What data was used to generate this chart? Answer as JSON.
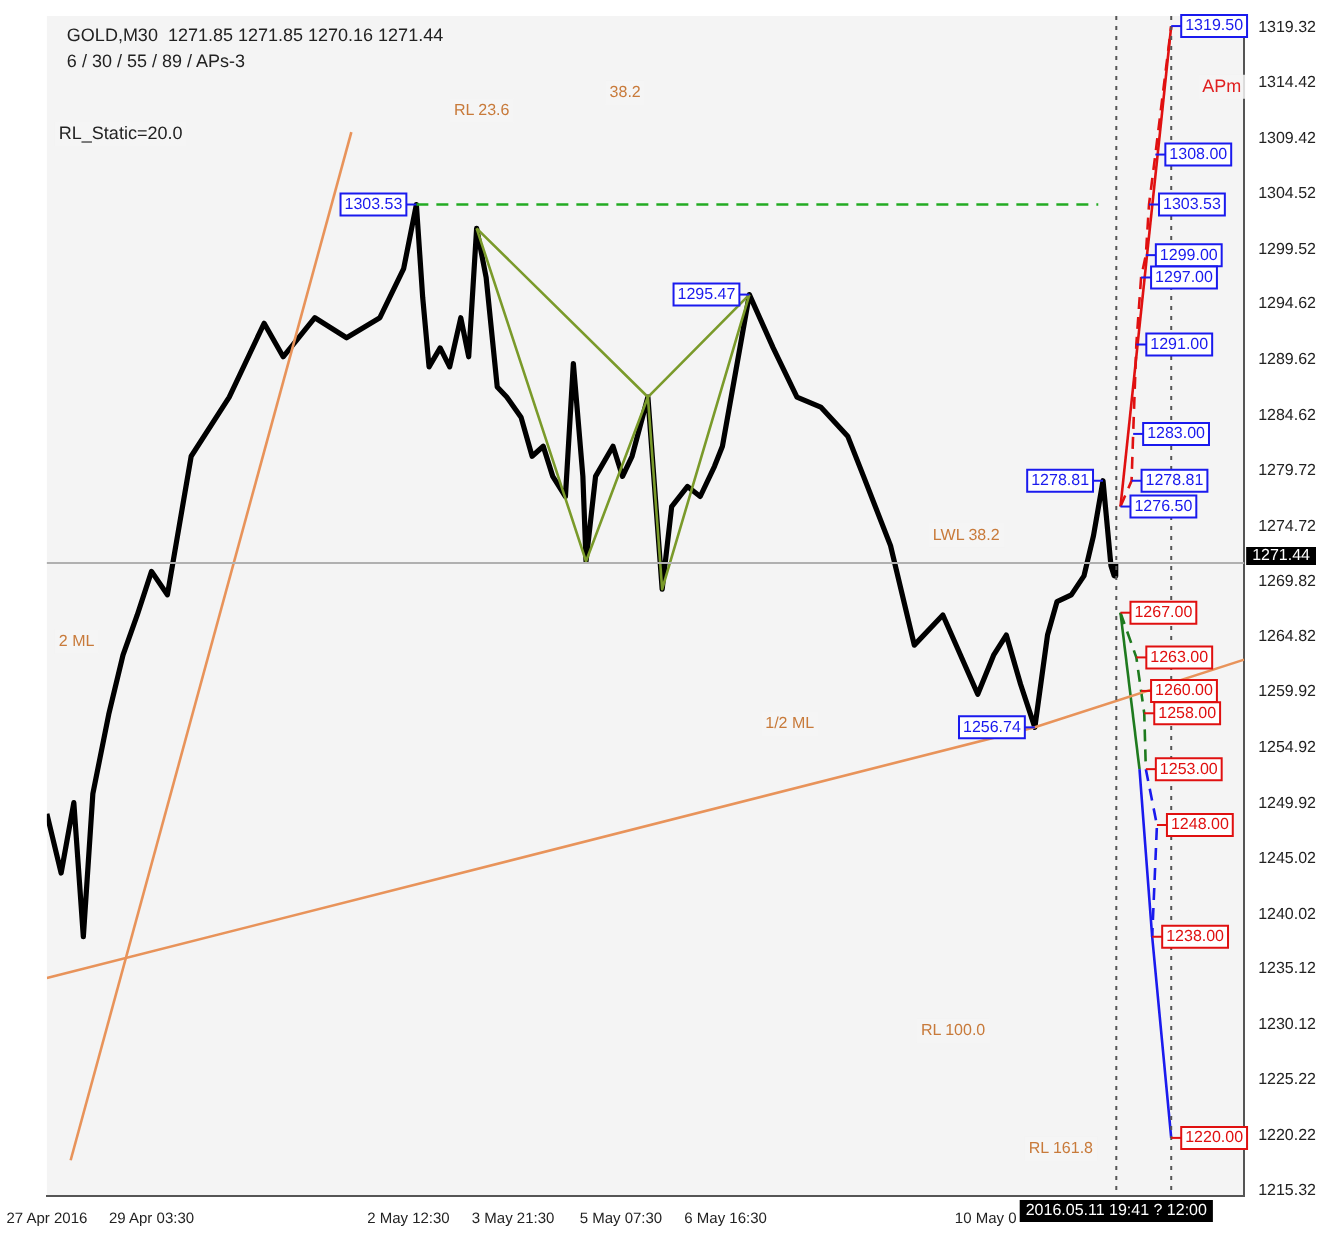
{
  "chart_data": {
    "type": "line",
    "title": "GOLD,M30  1271.85 1271.85 1270.16 1271.44",
    "subtitle": "6 / 30 / 55 / 89 / APs-3",
    "xlim": [
      "2016-04-27T18:30",
      "2016-05-13T12:00"
    ],
    "ylim": [
      1214.8,
      1320.4
    ],
    "xticks": [
      {
        "value": "2016-04-27T18:30",
        "label": "27 Apr 2016"
      },
      {
        "value": "2016-04-29T03:30",
        "label": "29 Apr 03:30"
      },
      {
        "value": "2016-05-02T12:30",
        "label": "2 May 12:30"
      },
      {
        "value": "2016-05-03T21:30",
        "label": "3 May 21:30"
      },
      {
        "value": "2016-05-05T07:30",
        "label": "5 May 07:30"
      },
      {
        "value": "2016-05-06T16:30",
        "label": "6 May 16:30"
      },
      {
        "value": "2016-05-10T02:30",
        "label": "10 May 0"
      }
    ],
    "yticks": [
      1215.32,
      1220.22,
      1225.22,
      1230.12,
      1235.12,
      1240.02,
      1245.02,
      1249.92,
      1254.92,
      1259.92,
      1264.82,
      1269.82,
      1274.72,
      1279.72,
      1284.62,
      1289.62,
      1294.62,
      1299.52,
      1304.52,
      1309.42,
      1314.42,
      1319.32
    ],
    "grid": false,
    "legend": false,
    "series": [
      {
        "color": "#e8935a",
        "x": [
          "2016-04-28T02:00",
          "2016-05-01T18:30"
        ],
        "values": [
          1218.0,
          1310.0
        ]
      },
      {
        "color": "#e8935a",
        "x": [
          "2016-04-27T18:30",
          "2016-05-10T18:00",
          "2016-05-13T12:00"
        ],
        "values": [
          1234.3,
          1256.74,
          1262.8
        ]
      },
      {
        "color": "#22aa22",
        "line_style": "dashed",
        "x": [
          "2016-05-02T15:00",
          "2016-05-11T14:00"
        ],
        "values": [
          1303.53,
          1303.53
        ]
      },
      {
        "color": "#7a9a2a",
        "x": [
          "2016-05-03T10:00",
          "2016-05-04T20:30",
          "2016-05-05T16:00",
          "2016-05-05T20:30",
          "2016-05-07T00:00"
        ],
        "values": [
          1301.4,
          1271.6,
          1286.3,
          1269.1,
          1295.47
        ]
      },
      {
        "color": "#7a9a2a",
        "x": [
          "2016-05-03T10:00",
          "2016-05-05T16:00",
          "2016-05-07T00:00"
        ],
        "values": [
          1301.4,
          1286.3,
          1295.47
        ]
      },
      {
        "color": "#000000",
        "x": [
          "2016-04-27T18:30",
          "2016-04-27T23:00",
          "2016-04-28T03:00",
          "2016-04-28T06:00",
          "2016-04-28T09:00",
          "2016-04-28T14:00",
          "2016-04-28T18:30",
          "2016-04-28T23:00",
          "2016-04-29T03:30",
          "2016-04-29T08:30",
          "2016-04-29T16:00",
          "2016-04-30T04:00",
          "2016-04-30T15:00",
          "2016-04-30T21:00",
          "2016-05-01T07:00",
          "2016-05-01T17:00",
          "2016-05-02T03:30",
          "2016-05-02T11:00",
          "2016-05-02T15:00",
          "2016-05-02T17:00",
          "2016-05-02T19:00",
          "2016-05-02T22:30",
          "2016-05-03T01:30",
          "2016-05-03T05:00",
          "2016-05-03T07:30",
          "2016-05-03T10:00",
          "2016-05-03T13:00",
          "2016-05-03T16:30",
          "2016-05-03T19:30",
          "2016-05-04T00:00",
          "2016-05-04T03:30",
          "2016-05-04T07:00",
          "2016-05-04T10:00",
          "2016-05-04T14:00",
          "2016-05-04T16:30",
          "2016-05-04T19:30",
          "2016-05-04T20:30",
          "2016-05-04T23:30",
          "2016-05-05T05:00",
          "2016-05-05T08:00",
          "2016-05-05T11:00",
          "2016-05-05T16:00",
          "2016-05-05T20:30",
          "2016-05-05T23:30",
          "2016-05-06T04:30",
          "2016-05-06T08:30",
          "2016-05-06T13:00",
          "2016-05-06T15:30",
          "2016-05-07T00:00",
          "2016-05-07T07:30",
          "2016-05-07T15:00",
          "2016-05-07T22:30",
          "2016-05-08T07:00",
          "2016-05-08T12:00",
          "2016-05-08T20:30",
          "2016-05-09T04:00",
          "2016-05-09T13:00",
          "2016-05-10T00:00",
          "2016-05-10T05:00",
          "2016-05-10T09:00",
          "2016-05-10T13:30",
          "2016-05-10T18:00",
          "2016-05-10T22:00",
          "2016-05-11T01:00",
          "2016-05-11T05:30",
          "2016-05-11T09:30",
          "2016-05-11T12:30",
          "2016-05-11T15:30",
          "2016-05-11T18:00",
          "2016-05-11T19:00",
          "2016-05-11T19:30"
        ],
        "values": [
          1249.0,
          1243.7,
          1250.0,
          1238.0,
          1250.8,
          1257.9,
          1263.2,
          1266.8,
          1270.7,
          1268.6,
          1281.0,
          1286.3,
          1292.9,
          1289.9,
          1293.4,
          1291.6,
          1293.4,
          1297.8,
          1303.53,
          1295.2,
          1289.0,
          1290.7,
          1289.0,
          1293.4,
          1289.9,
          1301.4,
          1297.0,
          1287.2,
          1286.3,
          1284.5,
          1281.0,
          1281.9,
          1279.2,
          1277.4,
          1289.3,
          1279.2,
          1271.6,
          1279.2,
          1281.9,
          1279.2,
          1281.0,
          1286.3,
          1269.1,
          1276.5,
          1278.3,
          1277.4,
          1280.1,
          1281.9,
          1295.47,
          1290.7,
          1286.3,
          1285.4,
          1282.8,
          1279.2,
          1273.0,
          1264.1,
          1266.8,
          1259.7,
          1263.2,
          1265.0,
          1260.6,
          1256.74,
          1265.0,
          1268.0,
          1268.6,
          1270.3,
          1273.9,
          1278.81,
          1271.2,
          1270.3,
          1271.44
        ]
      },
      {
        "color": "#e01010",
        "x": [
          "2016-05-11T21:00",
          "2016-05-12T13:00"
        ],
        "values": [
          1276.5,
          1319.5
        ]
      },
      {
        "color": "#1e7a1e",
        "x": [
          "2016-05-11T21:00",
          "2016-05-12T03:00"
        ],
        "values": [
          1267.0,
          1253.0
        ]
      },
      {
        "color": "#1a1aee",
        "x": [
          "2016-05-12T03:00",
          "2016-05-12T07:00",
          "2016-05-12T13:00"
        ],
        "values": [
          1253.0,
          1238.0,
          1220.0
        ]
      },
      {
        "color": "#1a1aee",
        "line_style": "dashed",
        "x": [
          "2016-05-12T05:00",
          "2016-05-12T08:30",
          "2016-05-12T07:00"
        ],
        "values": [
          1253.0,
          1248.0,
          1238.0
        ]
      },
      {
        "color": "#e01010",
        "line_style": "dashed",
        "x": [
          "2016-05-11T21:00",
          "2016-05-12T00:30",
          "2016-05-12T01:00",
          "2016-05-12T02:00",
          "2016-05-12T03:30",
          "2016-05-12T05:00",
          "2016-05-12T06:00",
          "2016-05-12T08:00",
          "2016-05-12T13:00"
        ],
        "values": [
          1276.5,
          1278.81,
          1283.0,
          1291.0,
          1297.0,
          1299.0,
          1303.53,
          1308.0,
          1319.5
        ]
      },
      {
        "color": "#1e7a1e",
        "line_style": "dashed",
        "x": [
          "2016-05-11T21:00",
          "2016-05-12T02:00",
          "2016-05-12T03:30",
          "2016-05-12T04:30",
          "2016-05-12T05:00"
        ],
        "values": [
          1267.0,
          1263.0,
          1260.0,
          1258.0,
          1253.0
        ]
      }
    ],
    "ref_lines": [
      {
        "axis": "y",
        "value": 1271.44,
        "label": "1271.44",
        "color": "#b0b0b0"
      },
      {
        "axis": "x",
        "value": "2016-05-11T19:41",
        "label": "2016.05.11 19:41 ? 12:00",
        "color": "#555555",
        "line_style": "dotted"
      },
      {
        "axis": "x",
        "value": "2016-05-12T13:00",
        "color": "#555555",
        "line_style": "dotted"
      }
    ],
    "annotations": [
      "RL_Static=20.0",
      "APm",
      "2 ML",
      "1/2 ML",
      "LWL 38.2",
      "RL 23.6",
      "38.2",
      "RL 100.0",
      "RL 161.8",
      {
        "text": "1303.53",
        "x": "2016-05-02T15:00",
        "y": 1303.53
      },
      {
        "text": "1295.47",
        "x": "2016-05-07T00:00",
        "y": 1295.47
      },
      {
        "text": "1278.81",
        "x": "2016-05-11T15:30",
        "y": 1278.81
      },
      {
        "text": "1256.74",
        "x": "2016-05-10T18:00",
        "y": 1256.74
      },
      {
        "text": "1319.50",
        "x": "2016-05-12T13:00",
        "y": 1319.5
      },
      {
        "text": "1308.00",
        "x": "2016-05-12T08:00",
        "y": 1308.0
      },
      {
        "text": "1303.53",
        "x": "2016-05-12T06:00",
        "y": 1303.53
      },
      {
        "text": "1299.00",
        "x": "2016-05-12T05:00",
        "y": 1299.0
      },
      {
        "text": "1297.00",
        "x": "2016-05-12T03:30",
        "y": 1297.0
      },
      {
        "text": "1291.00",
        "x": "2016-05-12T02:00",
        "y": 1291.0
      },
      {
        "text": "1283.00",
        "x": "2016-05-12T01:00",
        "y": 1283.0
      },
      {
        "text": "1278.81",
        "x": "2016-05-12T00:30",
        "y": 1278.81
      },
      {
        "text": "1276.50",
        "x": "2016-05-11T21:00",
        "y": 1276.5
      },
      {
        "text": "1267.00",
        "x": "2016-05-11T21:00",
        "y": 1267.0
      },
      {
        "text": "1263.00",
        "x": "2016-05-12T02:00",
        "y": 1263.0
      },
      {
        "text": "1260.00",
        "x": "2016-05-12T03:30",
        "y": 1260.0
      },
      {
        "text": "1258.00",
        "x": "2016-05-12T04:30",
        "y": 1258.0
      },
      {
        "text": "1253.00",
        "x": "2016-05-12T05:00",
        "y": 1253.0
      },
      {
        "text": "1248.00",
        "x": "2016-05-12T08:30",
        "y": 1248.0
      },
      {
        "text": "1238.00",
        "x": "2016-05-12T07:00",
        "y": 1238.0
      },
      {
        "text": "1220.00",
        "x": "2016-05-12T13:00",
        "y": 1220.0
      }
    ]
  }
}
